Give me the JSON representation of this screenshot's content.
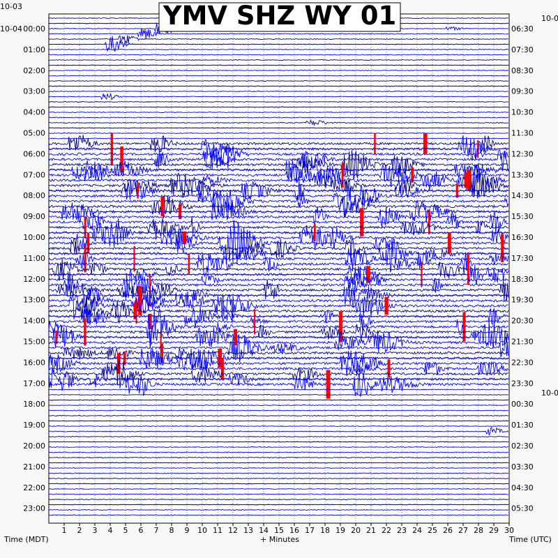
{
  "chart_data": {
    "type": "line",
    "title": "YMV SHZ WY 01",
    "xlabel": "+ Minutes",
    "left_axis_label": "Time (MDT)",
    "right_axis_label": "Time (UTC)",
    "x_ticks": [
      "1",
      "2",
      "3",
      "4",
      "5",
      "6",
      "7",
      "8",
      "9",
      "10",
      "11",
      "12",
      "13",
      "14",
      "15",
      "16",
      "17",
      "18",
      "19",
      "20",
      "21",
      "22",
      "23",
      "24",
      "25",
      "26",
      "27",
      "28",
      "29",
      "30"
    ],
    "xlim": [
      0,
      30
    ],
    "date_labels_left": [
      "10-03",
      "10-04"
    ],
    "date_labels_right": [
      "10-0",
      "10-0"
    ],
    "left_hour_labels": [
      "00:00",
      "01:00",
      "02:00",
      "03:00",
      "04:00",
      "05:00",
      "06:00",
      "07:00",
      "08:00",
      "09:00",
      "10:00",
      "11:00",
      "12:00",
      "13:00",
      "14:00",
      "15:00",
      "16:00",
      "17:00",
      "18:00",
      "19:00",
      "20:00",
      "21:00",
      "22:00",
      "23:00"
    ],
    "right_hour_labels": [
      "06:30",
      "07:30",
      "08:30",
      "09:30",
      "10:30",
      "11:30",
      "12:30",
      "13:30",
      "14:30",
      "15:30",
      "16:30",
      "17:30",
      "18:30",
      "19:30",
      "20:30",
      "21:30",
      "22:30",
      "23:30",
      "00:30",
      "01:30",
      "02:30",
      "03:30",
      "04:30",
      "05:30"
    ],
    "trace_colors": [
      "#000080",
      "#0000ff",
      "#0000ff",
      "#0000ff"
    ],
    "clip_color": "#ff0000",
    "lines_per_hour": 4,
    "active_hours": [
      6,
      17
    ],
    "grid": "vertical dotted lines every minute"
  }
}
